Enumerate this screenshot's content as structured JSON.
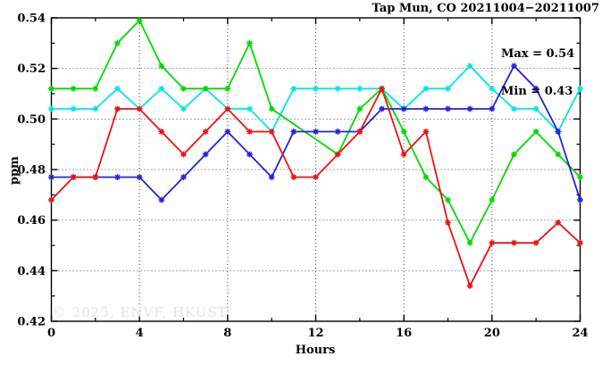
{
  "chart_data": {
    "type": "line",
    "title": "Tap Mun, CO 20211004−20211007",
    "xlabel": "Hours",
    "ylabel": "ppm",
    "annotation": {
      "max_label": "Max = 0.54",
      "min_label": "Min = 0.43"
    },
    "watermark": "© 2025, ENVF, HKUST",
    "xlim": [
      0,
      24
    ],
    "ylim": [
      0.42,
      0.54
    ],
    "xticks": {
      "major": [
        0,
        4,
        8,
        12,
        16,
        20,
        24
      ],
      "minor_step": 2
    },
    "yticks": {
      "major": [
        0.42,
        0.44,
        0.46,
        0.48,
        0.5,
        0.52,
        0.54
      ],
      "minor_step": 0.01,
      "decimals": 2
    },
    "grid": {
      "x": [
        4,
        8,
        12,
        16,
        20
      ],
      "y": [
        0.44,
        0.46,
        0.48,
        0.5,
        0.52
      ],
      "style": "dotted"
    },
    "legend_position": "none",
    "x": [
      0,
      1,
      2,
      3,
      4,
      5,
      6,
      7,
      8,
      9,
      10,
      11,
      12,
      13,
      14,
      15,
      16,
      17,
      18,
      19,
      20,
      21,
      22,
      23,
      24
    ],
    "series": [
      {
        "name": "cyan",
        "color": "#00e5e5",
        "values": [
          0.504,
          0.504,
          0.504,
          0.512,
          0.504,
          0.512,
          0.504,
          0.512,
          0.504,
          0.504,
          0.495,
          0.512,
          0.512,
          0.512,
          0.512,
          0.512,
          0.504,
          0.512,
          0.512,
          0.521,
          0.512,
          0.504,
          0.504,
          0.495,
          0.512
        ]
      },
      {
        "name": "green",
        "color": "#00d900",
        "values": [
          0.512,
          0.512,
          0.512,
          0.53,
          0.539,
          0.521,
          0.512,
          0.512,
          0.512,
          0.53,
          0.504,
          null,
          null,
          0.486,
          0.504,
          0.512,
          0.495,
          0.477,
          0.468,
          0.451,
          0.468,
          0.486,
          0.495,
          0.486,
          0.477
        ]
      },
      {
        "name": "blue",
        "color": "#2222dd",
        "values": [
          0.477,
          0.477,
          0.477,
          0.477,
          0.477,
          0.468,
          0.477,
          0.486,
          0.495,
          0.486,
          0.477,
          0.495,
          0.495,
          0.495,
          0.495,
          0.504,
          0.504,
          0.504,
          0.504,
          0.504,
          0.504,
          0.521,
          0.512,
          0.495,
          0.468
        ]
      },
      {
        "name": "red",
        "color": "#ee1111",
        "values": [
          0.468,
          0.477,
          0.477,
          0.504,
          0.504,
          0.495,
          0.486,
          0.495,
          0.504,
          0.495,
          0.495,
          0.477,
          0.477,
          0.486,
          0.495,
          0.512,
          0.486,
          0.495,
          0.459,
          0.434,
          0.451,
          0.451,
          0.451,
          0.459,
          0.451
        ]
      }
    ]
  }
}
